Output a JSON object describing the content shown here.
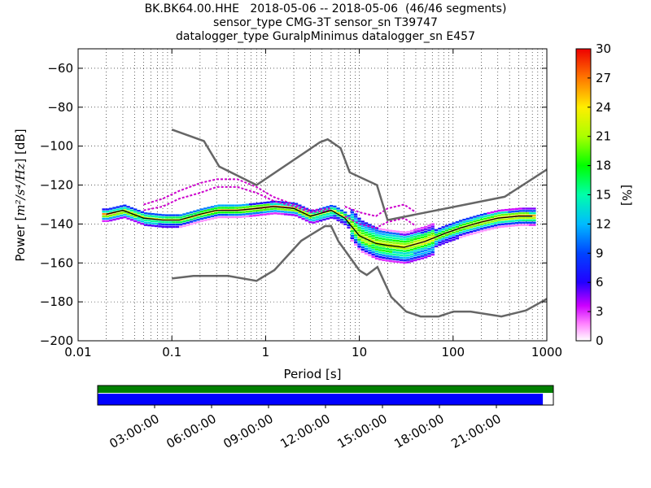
{
  "title_lines": [
    "BK.BK64.00.HHE   2018-05-06 -- 2018-05-06  (46/46 segments)",
    "sensor_type CMG-3T sensor_sn T39747",
    "datalogger_type GuralpMinimus datalogger_sn E457"
  ],
  "chart_data": {
    "type": "heatmap",
    "xlabel": "Period [s]",
    "ylabel_prefix": "Power [",
    "ylabel_unit": "m²/s⁴/Hz",
    "ylabel_suffix": "] [dB]",
    "xscale": "log",
    "xlim": [
      0.01,
      1000
    ],
    "ylim": [
      -200,
      -50
    ],
    "xtick_labels": [
      "0.01",
      "0.1",
      "1",
      "10",
      "100",
      "1000"
    ],
    "xtick_values": [
      0.01,
      0.1,
      1,
      10,
      100,
      1000
    ],
    "ytick_values": [
      -60,
      -80,
      -100,
      -120,
      -140,
      -160,
      -180,
      -200
    ],
    "ytick_labels": [
      "−60",
      "−80",
      "−100",
      "−120",
      "−140",
      "−160",
      "−180",
      "−200"
    ],
    "grid": true,
    "colorbar": {
      "label": "[%]",
      "range": [
        0,
        30
      ],
      "tick_values": [
        0,
        3,
        6,
        9,
        12,
        15,
        18,
        21,
        24,
        27,
        30
      ],
      "tick_labels": [
        "0",
        "3",
        "6",
        "9",
        "12",
        "15",
        "18",
        "21",
        "24",
        "27",
        "30"
      ]
    },
    "noise_models": [
      {
        "name": "NHNM",
        "color": "#666666",
        "x": [
          0.1,
          0.22,
          0.32,
          0.8,
          3.8,
          4.6,
          6.3,
          7.9,
          15.4,
          20,
          354.8,
          1000
        ],
        "y": [
          -91.5,
          -97.4,
          -110.5,
          -120,
          -98,
          -96.5,
          -101,
          -113.5,
          -120,
          -138,
          -126,
          -112
        ]
      },
      {
        "name": "NLNM",
        "color": "#666666",
        "x": [
          0.1,
          0.17,
          0.4,
          0.8,
          1.24,
          2.4,
          4.3,
          5,
          6,
          10,
          12,
          15.6,
          21.9,
          31.6,
          45,
          70,
          101,
          154,
          328,
          600,
          1000
        ],
        "y": [
          -168,
          -166.7,
          -166.7,
          -169.2,
          -163.7,
          -148.6,
          -141.1,
          -141.1,
          -149,
          -163.8,
          -166.2,
          -162.1,
          -177.5,
          -185,
          -187.5,
          -187.5,
          -185,
          -185,
          -187.5,
          -184.4,
          -178.5
        ]
      }
    ],
    "mode_curve": {
      "color": "#000000",
      "x": [
        0.02,
        0.03,
        0.05,
        0.08,
        0.12,
        0.2,
        0.3,
        0.5,
        0.8,
        1.2,
        2.0,
        3.0,
        5.0,
        7.0,
        10,
        15,
        20,
        30,
        50,
        80,
        120,
        200,
        300,
        500,
        700
      ],
      "y": [
        -135,
        -133,
        -137,
        -138,
        -138,
        -135,
        -133,
        -133,
        -132,
        -131,
        -132,
        -136,
        -133,
        -137,
        -146,
        -150,
        -151,
        -152,
        -149,
        -145,
        -142,
        -139,
        -137,
        -136,
        -136
      ]
    },
    "outlier_curves": [
      {
        "color": "#cc00cc",
        "x": [
          0.05,
          0.08,
          0.12,
          0.2,
          0.3,
          0.5,
          0.8,
          1.2,
          2.0,
          3.0,
          5.0
        ],
        "y": [
          -130,
          -127,
          -123,
          -119,
          -117,
          -117,
          -121,
          -126,
          -130,
          -133,
          -132
        ]
      },
      {
        "color": "#cc00cc",
        "x": [
          0.05,
          0.08,
          0.12,
          0.2,
          0.3,
          0.5,
          0.8,
          1.2,
          2.0,
          3.0,
          5.0
        ],
        "y": [
          -133,
          -131,
          -127,
          -124,
          -121,
          -121,
          -124,
          -128,
          -131,
          -134,
          -133
        ]
      },
      {
        "color": "#cc00cc",
        "x": [
          7,
          10,
          15,
          20,
          30,
          40
        ],
        "y": [
          -131,
          -134,
          -136,
          -132,
          -130,
          -134
        ]
      },
      {
        "color": "#cc00cc",
        "x": [
          7,
          10,
          15,
          20,
          30,
          40
        ],
        "y": [
          -136,
          -140,
          -142,
          -139,
          -137,
          -141
        ]
      }
    ],
    "colors": {
      "nm_line": "#666666",
      "mode": "#000000",
      "coverage_data": "#0000ff",
      "coverage_gaps": "#008000"
    }
  },
  "coverage": {
    "data_fraction": 0.977,
    "tick_labels": [
      "03:00:00",
      "06:00:00",
      "09:00:00",
      "12:00:00",
      "15:00:00",
      "18:00:00",
      "21:00:00"
    ],
    "tick_hours": [
      3,
      6,
      9,
      12,
      15,
      18,
      21
    ],
    "range_hours": [
      0,
      24
    ]
  }
}
